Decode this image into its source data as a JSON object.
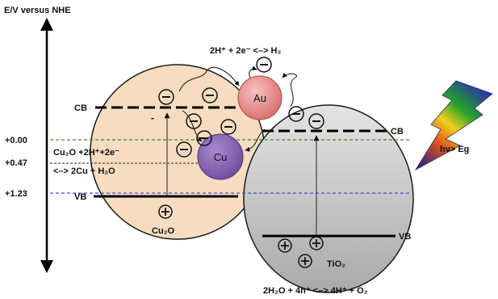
{
  "axis": {
    "title": "E/V versus NHE",
    "ticks": [
      {
        "label": "+0.00",
        "line_color": "#3a8a2a"
      },
      {
        "label": "+0.47",
        "line_color": "#222222"
      },
      {
        "label": "+1.23",
        "line_color": "#3a4fd6"
      }
    ]
  },
  "colors": {
    "cu2o_fill": "#f6dcc0",
    "tio2_fill": "#c9c9c9",
    "au_fill": "#e98b8b",
    "cu_fill": "#8f6bbb"
  },
  "cu2o": {
    "name": "Cu₂O",
    "cb_label": "CB",
    "vb_label": "VB",
    "reaction_line1": "Cu₂O +2H⁺+2e⁻",
    "reaction_line2": "<–> 2Cu + H₂O"
  },
  "tio2": {
    "name": "TiO₂",
    "cb_label": "CB",
    "vb_label": "VB",
    "reaction": "2H₂O + 4h⁺ <–> 4H⁺ + O₂"
  },
  "au": {
    "label": "Au"
  },
  "cu": {
    "label": "Cu"
  },
  "hydrogen_reaction": "2H⁺ + 2e⁻ <–> H₂",
  "light": {
    "label": "hν> Eg",
    "icon": "lightning-bolt-icon"
  },
  "carriers": {
    "electron_symbol": "−",
    "hole_symbol": "+",
    "minus_mark": "-"
  }
}
